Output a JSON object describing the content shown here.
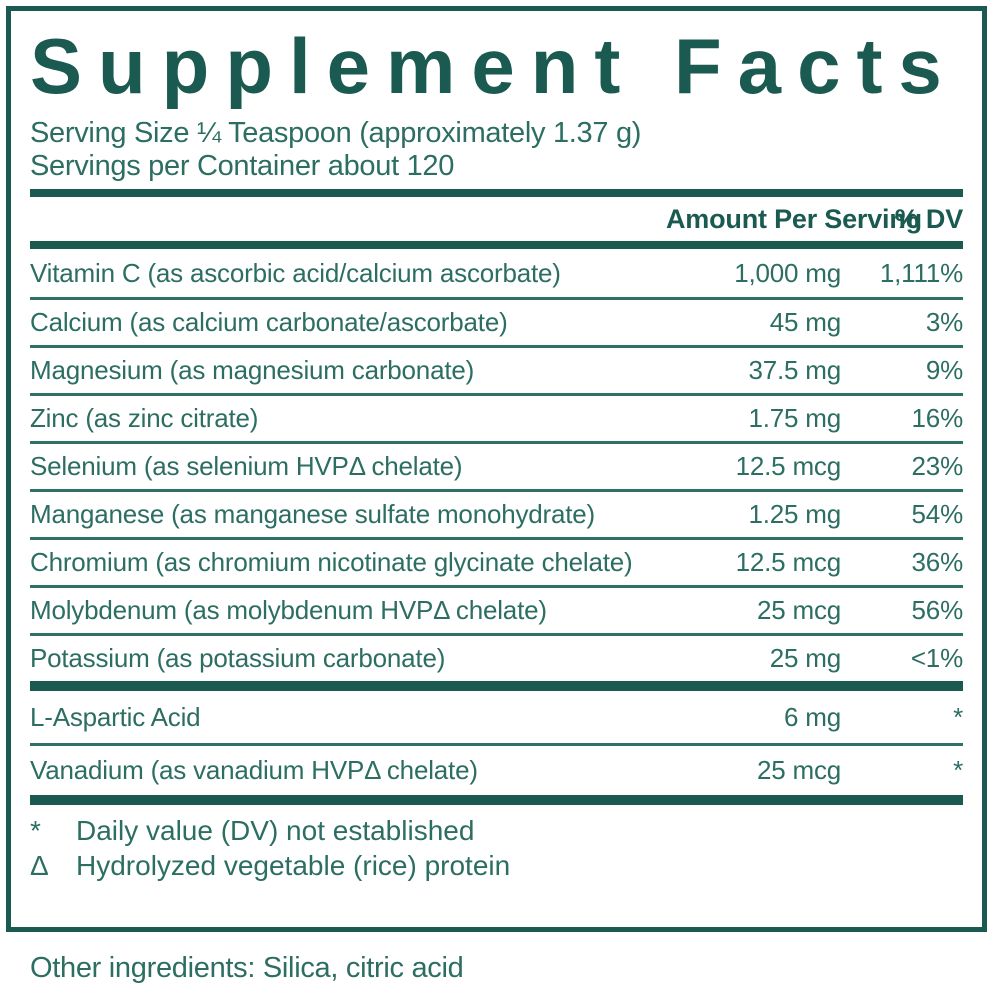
{
  "panel": {
    "title": "Supplement Facts",
    "serving_size_line": "Serving Size ¼ Teaspoon (approximately 1.37 g)",
    "servings_per_container_line": "Servings per Container about 120"
  },
  "table": {
    "amount_header": "Amount Per Serving",
    "dv_header": "% DV",
    "main_rows": [
      {
        "name": "Vitamin C (as ascorbic acid/calcium ascorbate)",
        "amount": "1,000 mg",
        "dv": "1,111%"
      },
      {
        "name": "Calcium (as calcium carbonate/ascorbate)",
        "amount": "45 mg",
        "dv": "3%"
      },
      {
        "name": "Magnesium (as magnesium carbonate)",
        "amount": "37.5 mg",
        "dv": "9%"
      },
      {
        "name": "Zinc (as zinc citrate)",
        "amount": "1.75 mg",
        "dv": "16%"
      },
      {
        "name": "Selenium (as selenium HVPΔ chelate)",
        "amount": "12.5 mcg",
        "dv": "23%"
      },
      {
        "name": "Manganese (as manganese sulfate monohydrate)",
        "amount": "1.25 mg",
        "dv": "54%"
      },
      {
        "name": "Chromium (as chromium nicotinate glycinate chelate)",
        "amount": "12.5 mcg",
        "dv": "36%"
      },
      {
        "name": "Molybdenum (as molybdenum HVPΔ chelate)",
        "amount": "25 mcg",
        "dv": "56%"
      },
      {
        "name": "Potassium (as potassium carbonate)",
        "amount": "25 mg",
        "dv": "<1%"
      }
    ],
    "no_dv_rows": [
      {
        "name": "L-Aspartic Acid",
        "amount": "6 mg",
        "dv": "*"
      },
      {
        "name": "Vanadium (as vanadium HVPΔ chelate)",
        "amount": "25 mcg",
        "dv": "*"
      }
    ]
  },
  "footnotes": [
    {
      "symbol": "*",
      "text": "Daily value (DV) not established"
    },
    {
      "symbol": "Δ",
      "text": "Hydrolyzed vegetable (rice) protein"
    }
  ],
  "other_ingredients_line": "Other ingredients: Silica, citric acid",
  "colors": {
    "ink_dark": "#1b5a50",
    "ink_body": "#2d6e62",
    "separator": "#2f7265",
    "background": "#ffffff"
  }
}
